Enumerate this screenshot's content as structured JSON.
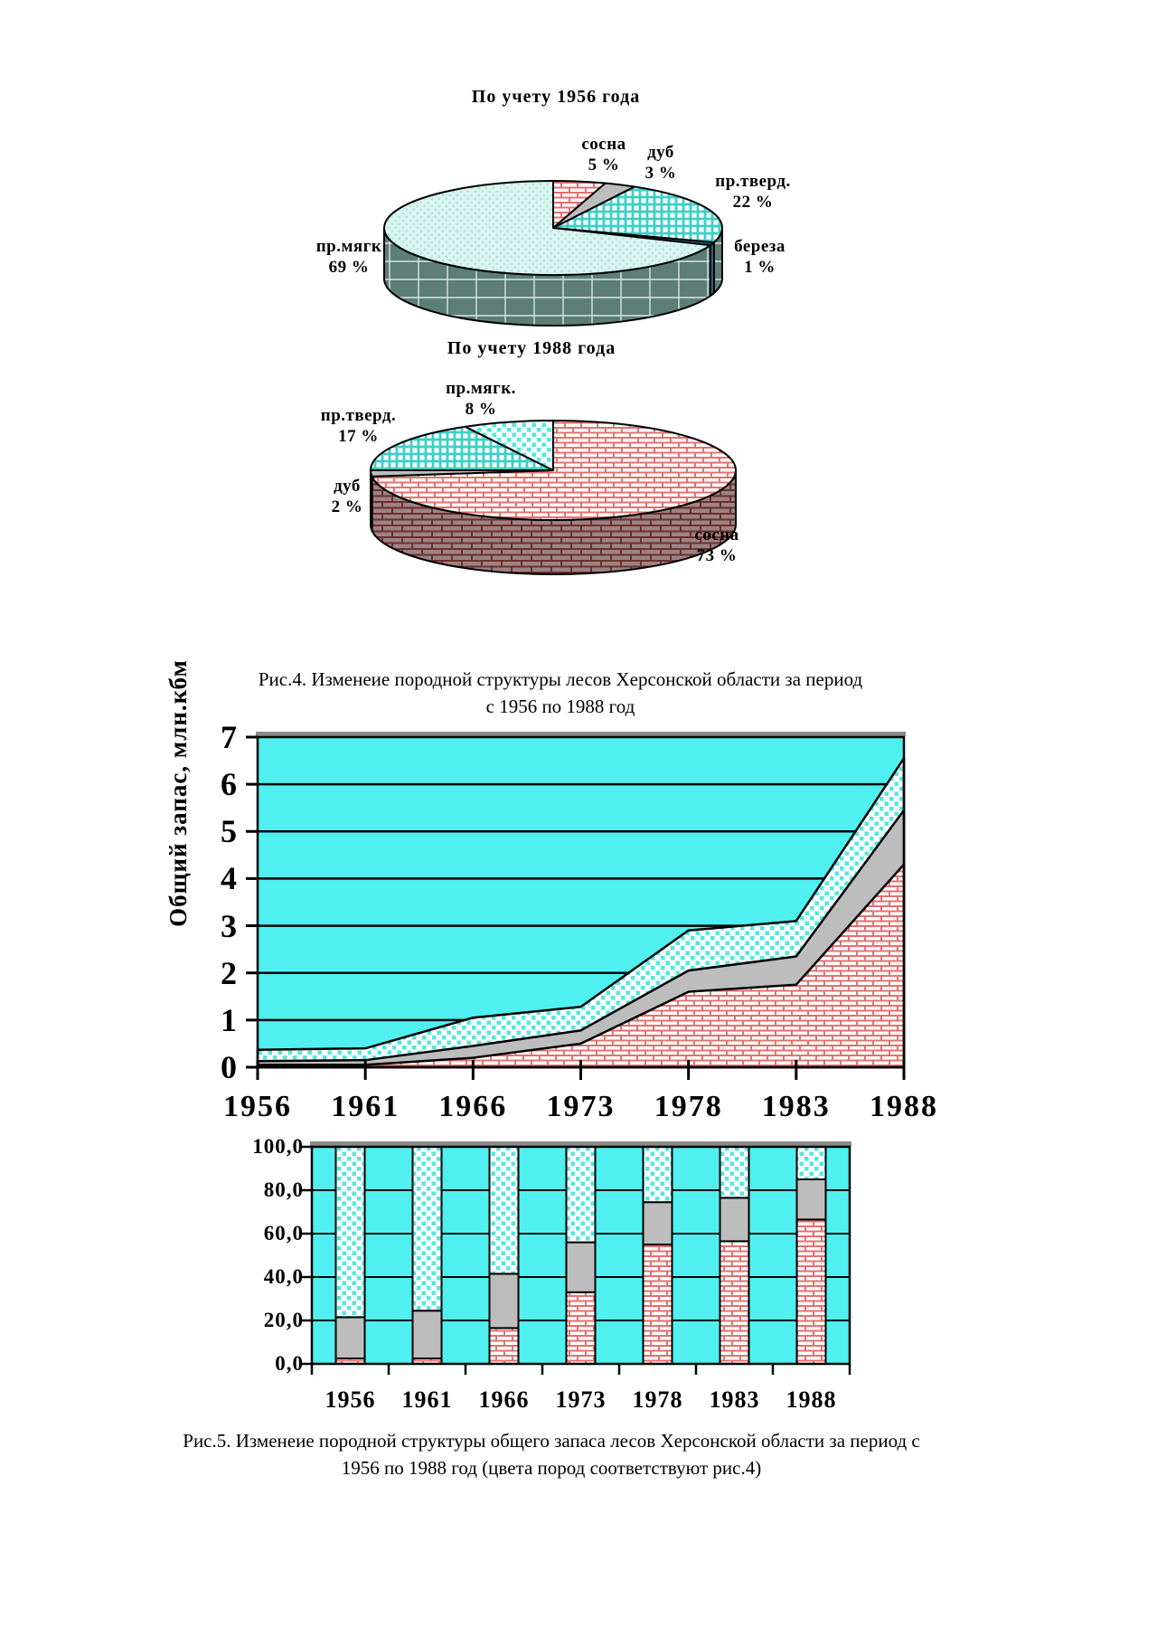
{
  "palette": {
    "background_cyan": "#50F0F0",
    "pine_brick_line": "#E57070",
    "oak_gray": "#BDBDBD",
    "softwood_dot": "#52E8DE",
    "hardwood_grid": "#3CD0C8",
    "birch_dark": "#2E6E86",
    "pie1956_wall_bg": "#5C7E76",
    "pie1956_wall_line": "#D6E6E0",
    "pie1988_wall_bg": "#9C8383",
    "pie1988_wall_line": "#6E2E2E",
    "frame_black": "#000000",
    "top_strip_gray": "#8A8A8A"
  },
  "fig4": {
    "caption_line1": "Рис.4. Изменеие породной структуры лесов Херсонской области за период",
    "caption_line2": "с 1956 по 1988 год"
  },
  "fig5": {
    "caption_line1": "Рис.5. Изменеие породной структуры общего запаса лесов Херсонской области за период с",
    "caption_line2": "1956 по 1988 год (цвета пород соответствуют рис.4)"
  },
  "chart_data": [
    {
      "id": "pie-1956",
      "type": "pie",
      "title": "По учету 1956 года",
      "start_angle_deg": 90,
      "direction": "clockwise",
      "labels": [
        "сосна",
        "дуб",
        "пр.тверд.",
        "береза",
        "пр.мягк"
      ],
      "values": [
        5,
        3,
        22,
        1,
        69
      ],
      "patterns": [
        "brick-pink",
        "gray-solid",
        "grid-teal",
        "birch-solid",
        "dot-pale"
      ],
      "wall_patterns": [
        null,
        null,
        "wall-dark",
        "birch-solid",
        "wall-dark"
      ],
      "callouts": [
        {
          "name": "сосна",
          "pct": "5 %"
        },
        {
          "name": "дуб",
          "pct": "3 %"
        },
        {
          "name": "пр.тверд.",
          "pct": "22 %"
        },
        {
          "name": "береза",
          "pct": "1 %"
        },
        {
          "name": "пр.мягк",
          "pct": "69 %"
        }
      ]
    },
    {
      "id": "pie-1988",
      "type": "pie",
      "title": "По учету 1988 года",
      "start_angle_deg": 90,
      "direction": "clockwise",
      "labels": [
        "сосна",
        "дуб",
        "пр.тверд.",
        "пр.мягк."
      ],
      "values": [
        73,
        2,
        17,
        8
      ],
      "patterns": [
        "brick-pink",
        "gray-solid",
        "grid-teal",
        "dot-cyan"
      ],
      "wall_patterns": [
        "wall-brick",
        "wall-gray",
        null,
        null
      ],
      "callouts": [
        {
          "name": "сосна",
          "pct": "73 %"
        },
        {
          "name": "дуб",
          "pct": "2 %"
        },
        {
          "name": "пр.тверд.",
          "pct": "17 %"
        },
        {
          "name": "пр.мягк.",
          "pct": "8 %"
        }
      ]
    },
    {
      "id": "area-total-stock",
      "type": "area",
      "ylabel": "Общий запас, млн.кбм",
      "x": [
        1956,
        1961,
        1966,
        1973,
        1978,
        1983,
        1988
      ],
      "x_labels": [
        "1956",
        "1961",
        "1966",
        "1973",
        "1978",
        "1983",
        "1988"
      ],
      "ylim": [
        0,
        7
      ],
      "yticks": [
        0,
        1,
        2,
        3,
        4,
        5,
        6,
        7
      ],
      "ytick_labels": [
        "0",
        "1",
        "2",
        "3",
        "4",
        "5",
        "6",
        "7"
      ],
      "grid": "horizontal",
      "series": [
        {
          "name": "сосна",
          "pattern": "brick-pink",
          "values": [
            0.05,
            0.05,
            0.2,
            0.5,
            1.6,
            1.75,
            4.3
          ]
        },
        {
          "name": "дуб",
          "pattern": "gray-solid",
          "values": [
            0.08,
            0.1,
            0.25,
            0.28,
            0.45,
            0.6,
            1.15
          ]
        },
        {
          "name": "пр.мягк",
          "pattern": "dot-cyan",
          "values": [
            0.24,
            0.25,
            0.6,
            0.5,
            0.85,
            0.75,
            1.1
          ]
        }
      ]
    },
    {
      "id": "bars-stock-structure",
      "type": "stacked-bar-100",
      "categories": [
        1956,
        1961,
        1966,
        1973,
        1978,
        1983,
        1988
      ],
      "x_labels": [
        "1956",
        "1961",
        "1966",
        "1973",
        "1978",
        "1983",
        "1988"
      ],
      "ylim": [
        0,
        100
      ],
      "yticks": [
        0,
        20,
        40,
        60,
        80,
        100
      ],
      "ytick_labels": [
        "0,0",
        "20,0",
        "40,0",
        "60,0",
        "80,0",
        "100,0"
      ],
      "grid": "horizontal",
      "series": [
        {
          "name": "сосна",
          "pattern": "brick-pink",
          "values": [
            2.5,
            2.5,
            16.5,
            33.0,
            55.0,
            56.5,
            66.5
          ]
        },
        {
          "name": "дуб",
          "pattern": "gray-solid",
          "values": [
            19.0,
            22.0,
            25.0,
            23.0,
            19.5,
            20.0,
            18.5
          ]
        },
        {
          "name": "пр.мягк",
          "pattern": "dot-cyan",
          "values": [
            78.5,
            75.5,
            58.5,
            44.0,
            25.5,
            23.5,
            15.0
          ]
        }
      ]
    }
  ]
}
